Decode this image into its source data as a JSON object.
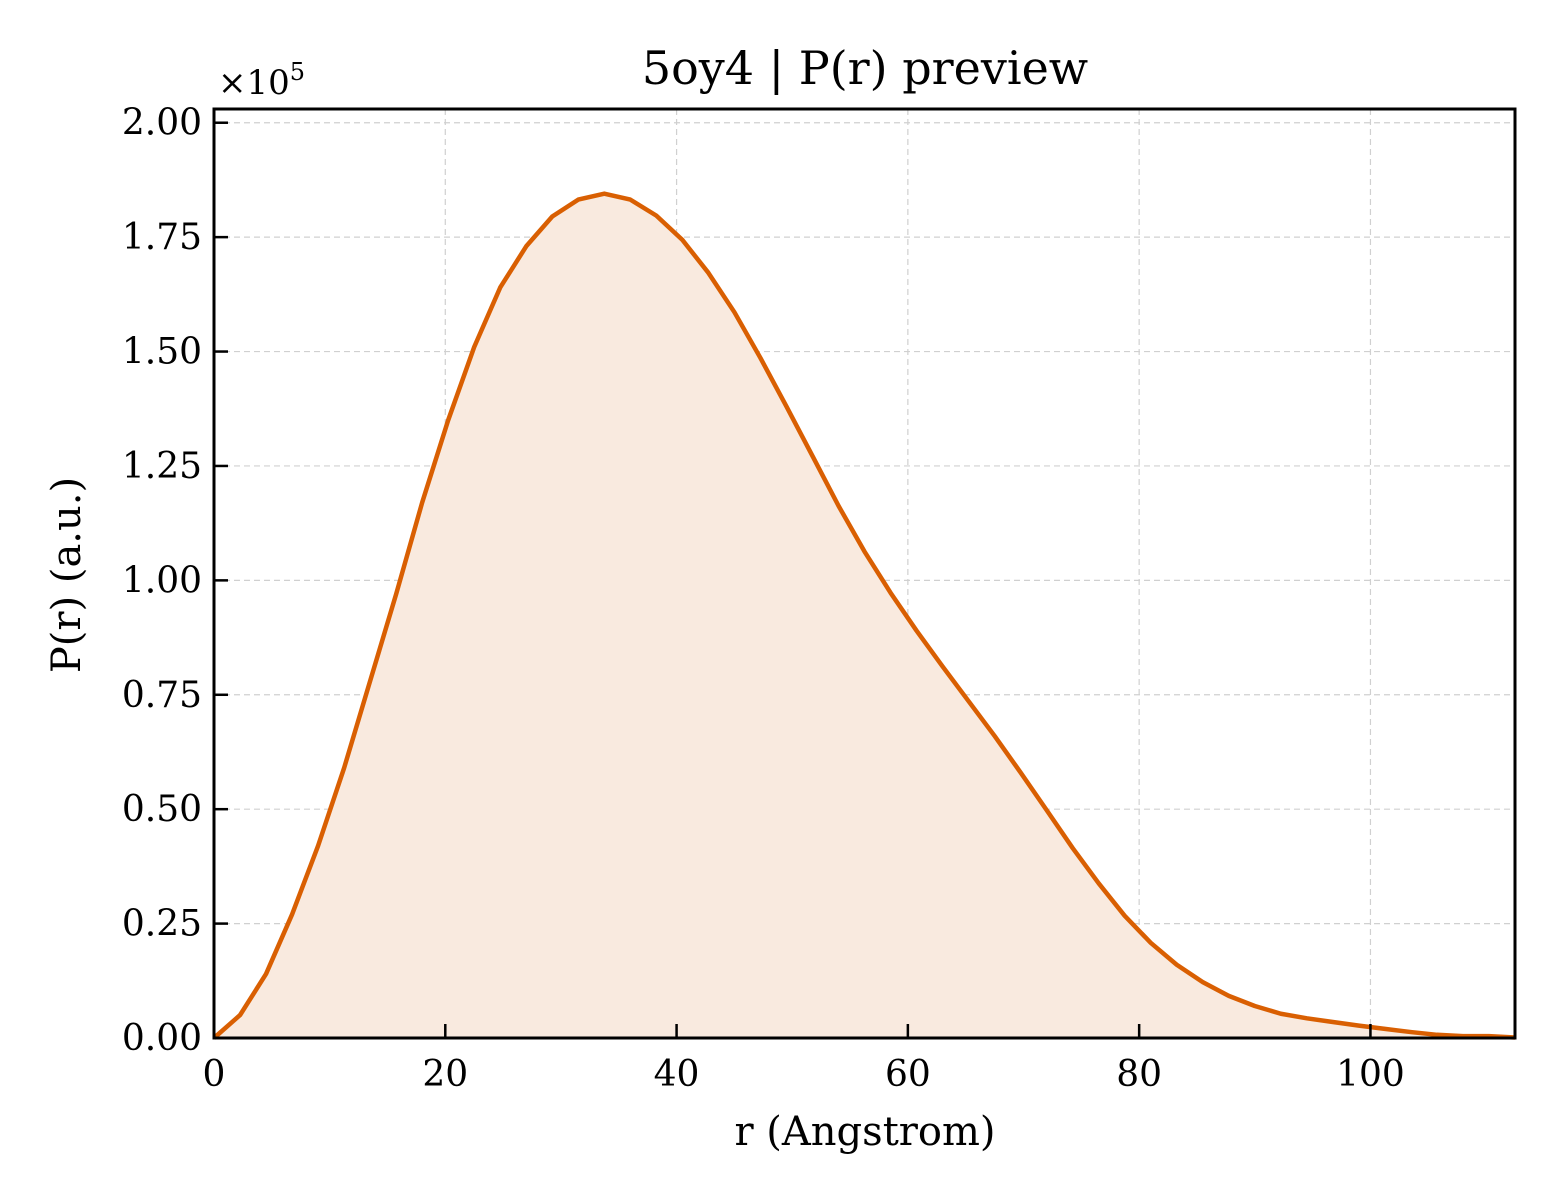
{
  "chart_data": {
    "type": "area",
    "title": "5oy4 | P(r) preview",
    "xlabel": "r (Angstrom)",
    "ylabel": "P(r) (a.u.)",
    "y_multiplier_label": "×10",
    "y_multiplier_exponent": "5",
    "xlim": [
      0,
      112.5
    ],
    "ylim": [
      0,
      2.03
    ],
    "x_ticks": [
      0,
      20,
      40,
      60,
      80,
      100
    ],
    "x_tick_labels": [
      "0",
      "20",
      "40",
      "60",
      "80",
      "100"
    ],
    "y_ticks": [
      0,
      0.25,
      0.5,
      0.75,
      1.0,
      1.25,
      1.5,
      1.75,
      2.0
    ],
    "y_tick_labels": [
      "0.00",
      "0.25",
      "0.50",
      "0.75",
      "1.00",
      "1.25",
      "1.50",
      "1.75",
      "2.00"
    ],
    "grid": true,
    "line_color": "#d95f02",
    "fill_color": "#f9eadf",
    "series": [
      {
        "x": [
          0,
          2.25,
          4.5,
          6.75,
          9.0,
          11.25,
          13.5,
          15.75,
          18.0,
          20.25,
          22.5,
          24.75,
          27.0,
          29.25,
          31.5,
          33.75,
          36.0,
          38.25,
          40.5,
          42.75,
          45.0,
          47.25,
          49.5,
          51.75,
          54.0,
          56.25,
          58.5,
          60.75,
          63.0,
          65.25,
          67.5,
          69.75,
          72.0,
          74.25,
          76.5,
          78.75,
          81.0,
          83.25,
          85.5,
          87.75,
          90.0,
          92.25,
          94.5,
          96.75,
          99.0,
          101.25,
          103.5,
          105.75,
          108.0,
          110.25,
          112.5
        ],
        "y": [
          0.0,
          0.05,
          0.14,
          0.27,
          0.42,
          0.59,
          0.78,
          0.97,
          1.17,
          1.35,
          1.51,
          1.64,
          1.73,
          1.795,
          1.832,
          1.845,
          1.832,
          1.797,
          1.744,
          1.672,
          1.586,
          1.486,
          1.38,
          1.272,
          1.163,
          1.063,
          0.973,
          0.89,
          0.812,
          0.736,
          0.66,
          0.58,
          0.498,
          0.415,
          0.338,
          0.267,
          0.208,
          0.16,
          0.122,
          0.092,
          0.07,
          0.053,
          0.043,
          0.035,
          0.027,
          0.02,
          0.013,
          0.007,
          0.004,
          0.004,
          0.001
        ]
      }
    ]
  }
}
